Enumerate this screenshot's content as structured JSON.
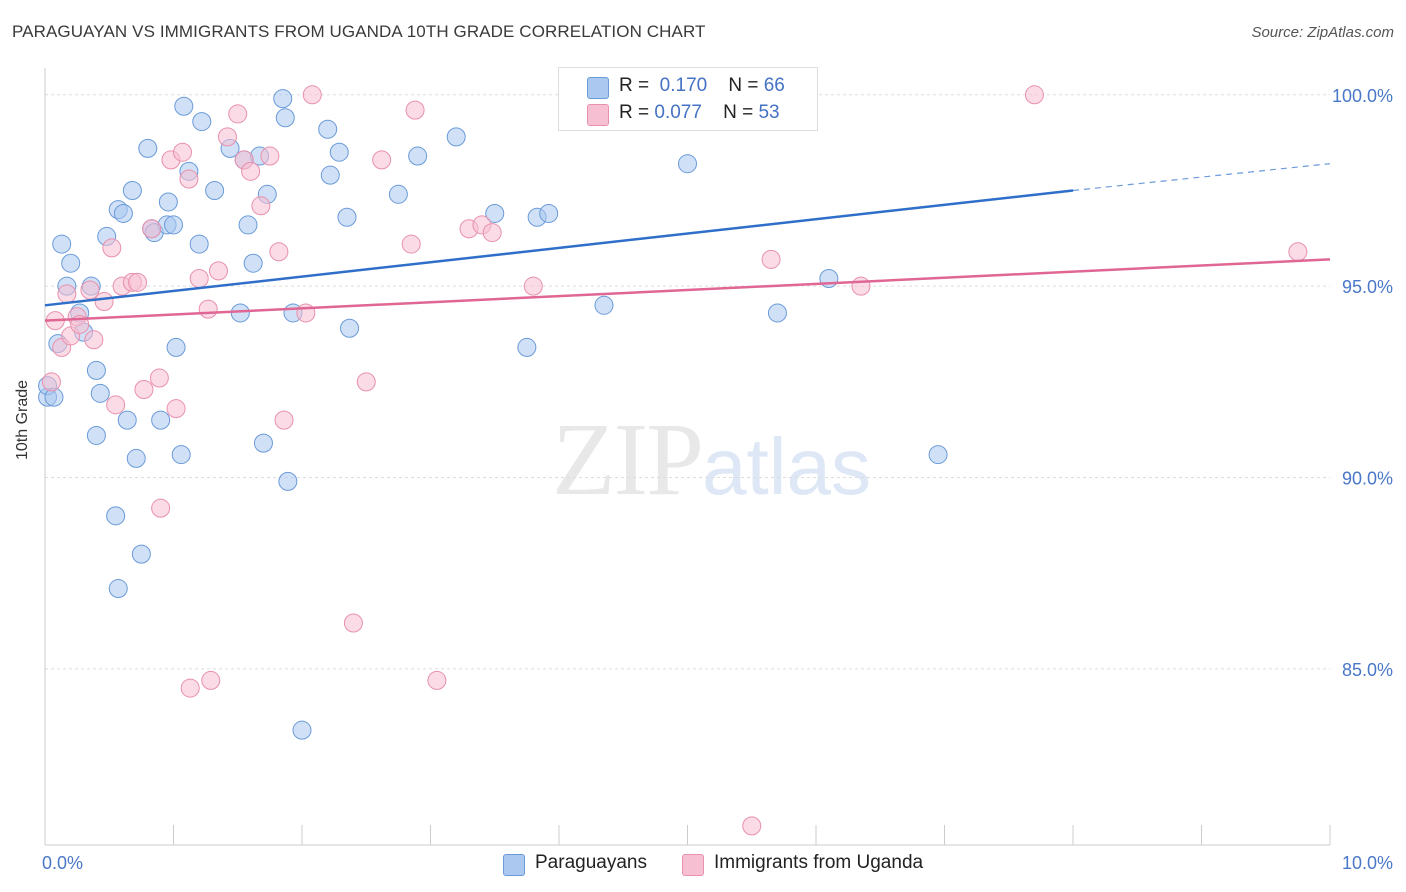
{
  "title": "PARAGUAYAN VS IMMIGRANTS FROM UGANDA 10TH GRADE CORRELATION CHART",
  "source": "Source: ZipAtlas.com",
  "watermark": {
    "zip": "ZIP",
    "atlas": "atlas"
  },
  "stats": [
    {
      "r_label": "R =",
      "r_value": "0.170",
      "n_label": "N =",
      "n_value": "66",
      "color": "#aac8f0",
      "border": "#6a9ad8"
    },
    {
      "r_label": "R =",
      "r_value": "0.077",
      "n_label": "N =",
      "n_value": "53",
      "color": "#f7c0d2",
      "border": "#e890ad"
    }
  ],
  "legend": [
    {
      "label": "Paraguayans",
      "color": "#aac8f0",
      "border": "#6a9ad8"
    },
    {
      "label": "Immigrants from Uganda",
      "color": "#f7c0d2",
      "border": "#e890ad"
    }
  ],
  "chart_data": {
    "type": "scatter",
    "title": "PARAGUAYAN VS IMMIGRANTS FROM UGANDA 10TH GRADE CORRELATION CHART",
    "xlabel": "",
    "ylabel": "10th Grade",
    "xlim": [
      0,
      10
    ],
    "ylim": [
      80.4,
      100.7
    ],
    "x_tick_labels": [
      {
        "value": 0,
        "label": "0.0%"
      },
      {
        "value": 10,
        "label": "10.0%"
      }
    ],
    "y_tick_labels": [
      {
        "value": 100,
        "label": "100.0%"
      },
      {
        "value": 95,
        "label": "95.0%"
      },
      {
        "value": 90,
        "label": "90.0%"
      },
      {
        "value": 85,
        "label": "85.0%"
      }
    ],
    "grid": true,
    "legend_position": "bottom",
    "series": [
      {
        "name": "Paraguayans",
        "color": "#aac8f0",
        "edge": "#6a9ad8",
        "trend_color": "#2f6fc9",
        "trend": {
          "x": [
            0,
            8
          ],
          "y": [
            94.5,
            97.5
          ],
          "dashed_to": [
            10,
            98.2
          ]
        },
        "points": [
          [
            0.02,
            92.1
          ],
          [
            0.02,
            92.4
          ],
          [
            0.07,
            92.1
          ],
          [
            0.1,
            93.5
          ],
          [
            0.13,
            96.1
          ],
          [
            0.17,
            95.0
          ],
          [
            0.2,
            95.6
          ],
          [
            0.27,
            94.3
          ],
          [
            0.3,
            93.8
          ],
          [
            0.36,
            95.0
          ],
          [
            0.4,
            91.1
          ],
          [
            0.4,
            92.8
          ],
          [
            0.43,
            92.2
          ],
          [
            0.48,
            96.3
          ],
          [
            0.55,
            89.0
          ],
          [
            0.57,
            87.1
          ],
          [
            0.57,
            97.0
          ],
          [
            0.61,
            96.9
          ],
          [
            0.64,
            91.5
          ],
          [
            0.68,
            97.5
          ],
          [
            0.71,
            90.5
          ],
          [
            0.75,
            88.0
          ],
          [
            0.8,
            98.6
          ],
          [
            0.83,
            96.5
          ],
          [
            0.85,
            96.4
          ],
          [
            0.9,
            91.5
          ],
          [
            0.95,
            96.6
          ],
          [
            0.96,
            97.2
          ],
          [
            1.0,
            96.6
          ],
          [
            1.02,
            93.4
          ],
          [
            1.06,
            90.6
          ],
          [
            1.08,
            99.7
          ],
          [
            1.12,
            98.0
          ],
          [
            1.2,
            96.1
          ],
          [
            1.22,
            99.3
          ],
          [
            1.32,
            97.5
          ],
          [
            1.44,
            98.6
          ],
          [
            1.52,
            94.3
          ],
          [
            1.55,
            98.3
          ],
          [
            1.58,
            96.6
          ],
          [
            1.62,
            95.6
          ],
          [
            1.67,
            98.4
          ],
          [
            1.7,
            90.9
          ],
          [
            1.73,
            97.4
          ],
          [
            1.89,
            89.9
          ],
          [
            1.85,
            99.9
          ],
          [
            1.87,
            99.4
          ],
          [
            1.93,
            94.3
          ],
          [
            2.0,
            83.4
          ],
          [
            2.2,
            99.1
          ],
          [
            2.22,
            97.9
          ],
          [
            2.29,
            98.5
          ],
          [
            2.35,
            96.8
          ],
          [
            2.37,
            93.9
          ],
          [
            2.75,
            97.4
          ],
          [
            2.9,
            98.4
          ],
          [
            3.2,
            98.9
          ],
          [
            3.5,
            96.9
          ],
          [
            3.75,
            93.4
          ],
          [
            3.83,
            96.8
          ],
          [
            3.92,
            96.9
          ],
          [
            4.35,
            94.5
          ],
          [
            5.0,
            98.2
          ],
          [
            5.7,
            94.3
          ],
          [
            6.1,
            95.2
          ],
          [
            6.95,
            90.6
          ]
        ]
      },
      {
        "name": "Immigrants from Uganda",
        "color": "#f7c0d2",
        "edge": "#e890ad",
        "trend_color": "#e06694",
        "trend": {
          "x": [
            0,
            10
          ],
          "y": [
            94.1,
            95.7
          ]
        },
        "points": [
          [
            0.05,
            92.5
          ],
          [
            0.08,
            94.1
          ],
          [
            0.13,
            93.4
          ],
          [
            0.17,
            94.8
          ],
          [
            0.2,
            93.7
          ],
          [
            0.25,
            94.2
          ],
          [
            0.27,
            94.0
          ],
          [
            0.35,
            94.9
          ],
          [
            0.38,
            93.6
          ],
          [
            0.46,
            94.6
          ],
          [
            0.52,
            96.0
          ],
          [
            0.55,
            91.9
          ],
          [
            0.6,
            95.0
          ],
          [
            0.68,
            95.1
          ],
          [
            0.72,
            95.1
          ],
          [
            0.77,
            92.3
          ],
          [
            0.83,
            96.5
          ],
          [
            0.89,
            92.6
          ],
          [
            0.9,
            89.2
          ],
          [
            0.98,
            98.3
          ],
          [
            1.02,
            91.8
          ],
          [
            1.07,
            98.5
          ],
          [
            1.12,
            97.8
          ],
          [
            1.13,
            84.5
          ],
          [
            1.2,
            95.2
          ],
          [
            1.27,
            94.4
          ],
          [
            1.29,
            84.7
          ],
          [
            1.35,
            95.4
          ],
          [
            1.42,
            98.9
          ],
          [
            1.5,
            99.5
          ],
          [
            1.55,
            98.3
          ],
          [
            1.6,
            98.0
          ],
          [
            1.68,
            97.1
          ],
          [
            1.75,
            98.4
          ],
          [
            1.82,
            95.9
          ],
          [
            1.86,
            91.5
          ],
          [
            2.03,
            94.3
          ],
          [
            2.08,
            100.0
          ],
          [
            2.4,
            86.2
          ],
          [
            2.5,
            92.5
          ],
          [
            2.62,
            98.3
          ],
          [
            2.85,
            96.1
          ],
          [
            2.88,
            99.6
          ],
          [
            3.05,
            84.7
          ],
          [
            3.3,
            96.5
          ],
          [
            3.4,
            96.6
          ],
          [
            3.48,
            96.4
          ],
          [
            3.8,
            95.0
          ],
          [
            5.5,
            80.9
          ],
          [
            5.65,
            95.7
          ],
          [
            6.35,
            95.0
          ],
          [
            7.7,
            100.0
          ],
          [
            9.75,
            95.9
          ]
        ]
      }
    ]
  }
}
